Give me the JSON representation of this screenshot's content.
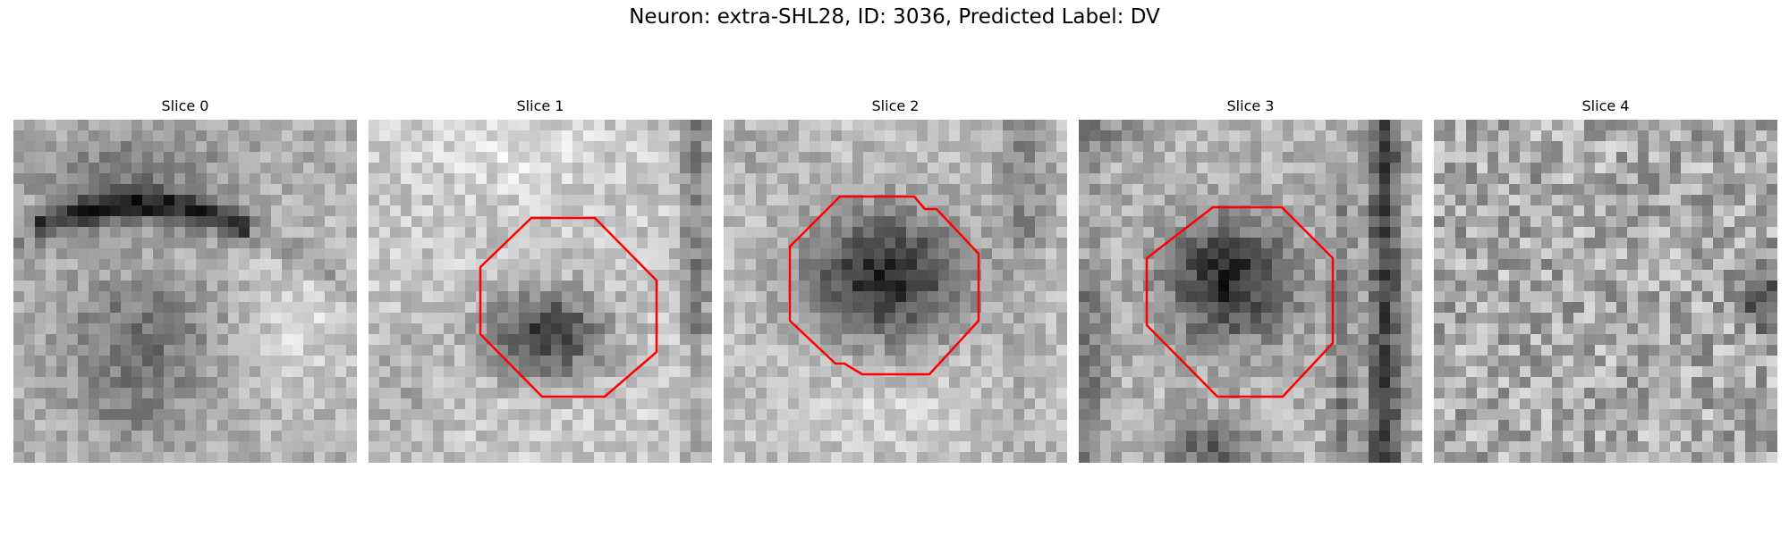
{
  "figure": {
    "title": "Neuron: extra-SHL28, ID: 3036, Predicted Label: DV",
    "outline_color": "#ff0000"
  },
  "slices": [
    {
      "label": "Slice 0",
      "has_contour": false
    },
    {
      "label": "Slice 1",
      "has_contour": true
    },
    {
      "label": "Slice 2",
      "has_contour": true
    },
    {
      "label": "Slice 3",
      "has_contour": true
    },
    {
      "label": "Slice 4",
      "has_contour": false
    }
  ]
}
